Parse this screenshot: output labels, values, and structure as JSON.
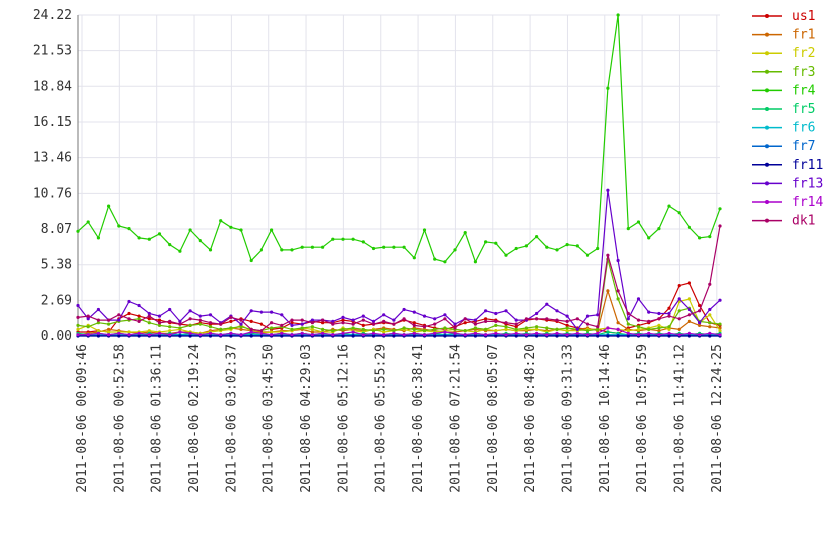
{
  "chart_data": {
    "type": "line",
    "title": "",
    "xlabel": "",
    "ylabel": "",
    "grid": true,
    "legend": "right",
    "ylim": [
      0,
      24.22
    ],
    "y_ticks": [
      "0.00",
      "2.69",
      "5.38",
      "8.07",
      "10.76",
      "13.46",
      "16.15",
      "18.84",
      "21.53",
      "24.22"
    ],
    "x_ticks": [
      "2011-08-06 00:09:46",
      "2011-08-06 00:52:58",
      "2011-08-06 01:36:11",
      "2011-08-06 02:19:24",
      "2011-08-06 03:02:37",
      "2011-08-06 03:45:50",
      "2011-08-06 04:29:03",
      "2011-08-06 05:12:16",
      "2011-08-06 05:55:29",
      "2011-08-06 06:38:41",
      "2011-08-06 07:21:54",
      "2011-08-06 08:05:07",
      "2011-08-06 08:48:20",
      "2011-08-06 09:31:33",
      "2011-08-06 10:14:46",
      "2011-08-06 10:57:59",
      "2011-08-06 11:41:12",
      "2011-08-06 12:24:25"
    ],
    "points_per_series": 64,
    "series": [
      {
        "name": "us1",
        "color": "#cc0000",
        "values": [
          0.3,
          0.3,
          0.4,
          0.3,
          1.3,
          1.7,
          1.5,
          1.3,
          1.2,
          1.0,
          0.9,
          0.8,
          1.0,
          0.9,
          0.9,
          1.1,
          1.3,
          1.1,
          0.9,
          0.5,
          0.6,
          1.0,
          0.9,
          1.1,
          1.0,
          1.0,
          1.2,
          1.1,
          0.8,
          0.9,
          1.0,
          0.9,
          1.2,
          1.0,
          0.8,
          0.6,
          0.5,
          0.7,
          1.0,
          1.1,
          1.3,
          1.2,
          0.9,
          0.7,
          1.2,
          1.3,
          1.2,
          1.1,
          0.8,
          0.6,
          0.5,
          0.5,
          0.3,
          0.2,
          0.6,
          0.8,
          1.0,
          1.3,
          2.1,
          3.8,
          4.0,
          2.3,
          1.0,
          0.8
        ]
      },
      {
        "name": "fr1",
        "color": "#cc6600",
        "values": [
          0.1,
          0.2,
          0.3,
          0.5,
          0.4,
          0.3,
          0.2,
          0.3,
          0.2,
          0.2,
          0.3,
          0.3,
          0.2,
          0.4,
          0.5,
          0.6,
          0.5,
          0.4,
          0.3,
          0.3,
          0.4,
          0.4,
          0.5,
          0.3,
          0.3,
          0.5,
          0.4,
          0.5,
          0.4,
          0.5,
          0.6,
          0.5,
          0.4,
          0.6,
          0.5,
          0.4,
          0.3,
          0.3,
          0.4,
          0.5,
          0.4,
          0.4,
          0.5,
          0.4,
          0.4,
          0.5,
          0.4,
          0.5,
          0.4,
          0.5,
          0.6,
          0.4,
          3.4,
          1.0,
          0.5,
          0.4,
          0.5,
          0.4,
          0.6,
          0.5,
          1.1,
          0.8,
          0.7,
          0.6
        ]
      },
      {
        "name": "fr2",
        "color": "#cccc00",
        "values": [
          0.5,
          0.8,
          0.4,
          0.3,
          0.3,
          0.3,
          0.3,
          0.4,
          0.3,
          0.4,
          0.5,
          0.3,
          0.2,
          0.3,
          0.4,
          0.5,
          0.8,
          0.4,
          0.2,
          0.3,
          0.3,
          0.4,
          0.6,
          0.5,
          0.3,
          0.3,
          0.6,
          0.4,
          0.3,
          0.5,
          0.3,
          0.4,
          0.5,
          0.3,
          0.4,
          0.3,
          0.4,
          0.5,
          0.4,
          0.3,
          0.5,
          0.4,
          0.5,
          0.4,
          0.5,
          0.5,
          0.3,
          0.5,
          0.4,
          0.4,
          0.5,
          0.5,
          0.6,
          0.5,
          0.4,
          0.5,
          0.6,
          0.8,
          0.5,
          2.6,
          2.8,
          1.0,
          1.6,
          0.4
        ]
      },
      {
        "name": "fr3",
        "color": "#66bb00",
        "values": [
          0.8,
          0.7,
          1.0,
          0.9,
          1.1,
          1.2,
          1.3,
          1.0,
          0.8,
          0.7,
          0.6,
          0.8,
          0.9,
          0.7,
          0.5,
          0.6,
          0.7,
          0.5,
          0.4,
          0.6,
          0.7,
          0.5,
          0.6,
          0.7,
          0.5,
          0.4,
          0.5,
          0.6,
          0.5,
          0.4,
          0.5,
          0.4,
          0.6,
          0.5,
          0.4,
          0.5,
          0.6,
          0.5,
          0.4,
          0.6,
          0.5,
          0.8,
          0.7,
          0.5,
          0.6,
          0.7,
          0.6,
          0.5,
          0.6,
          0.5,
          0.4,
          0.5,
          5.8,
          2.8,
          0.9,
          0.7,
          0.5,
          0.6,
          0.7,
          1.9,
          2.1,
          1.1,
          1.0,
          0.9
        ]
      },
      {
        "name": "fr4",
        "color": "#22cc00",
        "values": [
          7.9,
          8.6,
          7.4,
          9.8,
          8.3,
          8.1,
          7.4,
          7.3,
          7.7,
          6.9,
          6.4,
          8.0,
          7.2,
          6.5,
          8.7,
          8.2,
          8.0,
          5.7,
          6.5,
          8.0,
          6.5,
          6.5,
          6.7,
          6.7,
          6.7,
          7.3,
          7.3,
          7.3,
          7.1,
          6.6,
          6.7,
          6.7,
          6.7,
          5.9,
          8.0,
          5.8,
          5.6,
          6.5,
          7.8,
          5.6,
          7.1,
          7.0,
          6.1,
          6.6,
          6.8,
          7.5,
          6.7,
          6.5,
          6.9,
          6.8,
          6.1,
          6.6,
          18.7,
          24.22,
          8.1,
          8.6,
          7.4,
          8.1,
          9.8,
          9.3,
          8.2,
          7.4,
          7.5,
          9.6
        ]
      },
      {
        "name": "fr5",
        "color": "#00cc66",
        "values": [
          0.2,
          0.1,
          0.2,
          0.1,
          0.2,
          0.1,
          0.1,
          0.2,
          0.1,
          0.2,
          0.1,
          0.2,
          0.1,
          0.2,
          0.1,
          0.2,
          0.1,
          0.2,
          0.1,
          0.1,
          0.2,
          0.1,
          0.2,
          0.1,
          0.2,
          0.1,
          0.2,
          0.1,
          0.2,
          0.1,
          0.1,
          0.2,
          0.1,
          0.2,
          0.1,
          0.2,
          0.1,
          0.2,
          0.1,
          0.2,
          0.1,
          0.1,
          0.2,
          0.1,
          0.2,
          0.1,
          0.2,
          0.1,
          0.2,
          0.1,
          0.2,
          0.1,
          0.3,
          0.2,
          0.1,
          0.2,
          0.1,
          0.2,
          0.1,
          0.2,
          0.1,
          0.2,
          0.1,
          0.2
        ]
      },
      {
        "name": "fr6",
        "color": "#00bbcc",
        "values": [
          0.1,
          0.1,
          0.1,
          0.1,
          0.1,
          0.1,
          0.1,
          0.1,
          0.1,
          0.1,
          0.1,
          0.1,
          0.1,
          0.1,
          0.1,
          0.1,
          0.1,
          0.1,
          0.1,
          0.1,
          0.1,
          0.1,
          0.1,
          0.1,
          0.1,
          0.1,
          0.1,
          0.1,
          0.1,
          0.1,
          0.1,
          0.1,
          0.1,
          0.1,
          0.1,
          0.1,
          0.1,
          0.1,
          0.1,
          0.1,
          0.1,
          0.1,
          0.1,
          0.1,
          0.1,
          0.1,
          0.1,
          0.1,
          0.1,
          0.1,
          0.1,
          0.1,
          0.1,
          0.1,
          0.1,
          0.1,
          0.1,
          0.1,
          0.1,
          0.1,
          0.1,
          0.1,
          0.1,
          0.1
        ]
      },
      {
        "name": "fr7",
        "color": "#0066cc",
        "values": [
          0.05,
          0.05,
          0.05,
          0.05,
          0.05,
          0.05,
          0.05,
          0.05,
          0.05,
          0.05,
          0.05,
          0.05,
          0.05,
          0.05,
          0.05,
          0.05,
          0.05,
          0.05,
          0.05,
          0.05,
          0.05,
          0.05,
          0.05,
          0.05,
          0.05,
          0.05,
          0.05,
          0.05,
          0.05,
          0.05,
          0.05,
          0.05,
          0.05,
          0.05,
          0.05,
          0.05,
          0.05,
          0.05,
          0.05,
          0.05,
          0.05,
          0.05,
          0.05,
          0.05,
          0.05,
          0.05,
          0.05,
          0.05,
          0.05,
          0.05,
          0.05,
          0.05,
          0.05,
          0.05,
          0.05,
          0.05,
          0.05,
          0.05,
          0.05,
          0.05,
          0.05,
          0.05,
          0.05,
          0.05
        ]
      },
      {
        "name": "fr11",
        "color": "#000099",
        "values": [
          0.0,
          0.0,
          0.0,
          0.0,
          0.0,
          0.0,
          0.0,
          0.0,
          0.0,
          0.0,
          0.0,
          0.0,
          0.0,
          0.0,
          0.0,
          0.0,
          0.0,
          0.0,
          0.0,
          0.0,
          0.0,
          0.0,
          0.0,
          0.0,
          0.0,
          0.0,
          0.0,
          0.0,
          0.0,
          0.0,
          0.0,
          0.0,
          0.0,
          0.0,
          0.0,
          0.0,
          0.0,
          0.0,
          0.0,
          0.0,
          0.0,
          0.0,
          0.0,
          0.0,
          0.0,
          0.0,
          0.0,
          0.0,
          0.0,
          0.0,
          0.0,
          0.0,
          0.0,
          0.0,
          0.0,
          0.0,
          0.0,
          0.0,
          0.0,
          0.0,
          0.0,
          0.0,
          0.0,
          0.0
        ]
      },
      {
        "name": "fr13",
        "color": "#6600cc",
        "values": [
          2.3,
          1.3,
          2.0,
          1.2,
          1.2,
          2.6,
          2.3,
          1.7,
          1.5,
          2.0,
          1.1,
          1.9,
          1.5,
          1.6,
          1.0,
          1.5,
          0.9,
          1.9,
          1.8,
          1.8,
          1.6,
          0.8,
          0.9,
          1.2,
          1.2,
          1.1,
          1.4,
          1.2,
          1.5,
          1.1,
          1.6,
          1.2,
          2.0,
          1.8,
          1.5,
          1.3,
          1.6,
          0.9,
          1.3,
          1.2,
          1.9,
          1.7,
          1.9,
          1.2,
          1.2,
          1.7,
          2.4,
          1.9,
          1.5,
          0.5,
          1.5,
          1.6,
          11.0,
          5.7,
          1.3,
          2.8,
          1.8,
          1.7,
          1.7,
          2.8,
          2.0,
          1.0,
          2.0,
          2.7
        ]
      },
      {
        "name": "fr14",
        "color": "#aa00cc",
        "values": [
          0.1,
          0.1,
          0.2,
          0.1,
          0.2,
          0.1,
          0.2,
          0.1,
          0.2,
          0.1,
          0.3,
          0.2,
          0.1,
          0.2,
          0.1,
          0.2,
          0.1,
          0.3,
          0.2,
          0.1,
          0.2,
          0.1,
          0.2,
          0.1,
          0.2,
          0.1,
          0.2,
          0.3,
          0.1,
          0.2,
          0.1,
          0.2,
          0.1,
          0.2,
          0.1,
          0.2,
          0.3,
          0.2,
          0.1,
          0.2,
          0.1,
          0.2,
          0.1,
          0.2,
          0.1,
          0.2,
          0.1,
          0.2,
          0.1,
          0.2,
          0.1,
          0.2,
          0.6,
          0.5,
          0.2,
          0.1,
          0.2,
          0.1,
          0.2,
          0.1,
          0.2,
          0.1,
          0.2,
          0.1
        ]
      },
      {
        "name": "dk1",
        "color": "#aa0066",
        "values": [
          1.4,
          1.5,
          1.2,
          1.2,
          1.6,
          1.3,
          1.1,
          1.5,
          1.0,
          1.1,
          0.9,
          1.3,
          1.2,
          1.0,
          0.9,
          1.4,
          1.2,
          0.5,
          0.4,
          1.0,
          0.8,
          1.2,
          1.2,
          1.0,
          1.2,
          0.9,
          1.0,
          0.9,
          1.2,
          0.9,
          1.1,
          0.9,
          1.3,
          0.8,
          0.7,
          0.9,
          1.3,
          0.6,
          1.3,
          0.9,
          1.1,
          1.1,
          1.0,
          0.9,
          1.3,
          1.3,
          1.3,
          1.2,
          1.1,
          1.3,
          0.9,
          0.7,
          6.1,
          3.4,
          1.7,
          1.2,
          1.1,
          1.3,
          1.5,
          1.3,
          1.6,
          1.9,
          3.9,
          8.3
        ]
      }
    ]
  }
}
